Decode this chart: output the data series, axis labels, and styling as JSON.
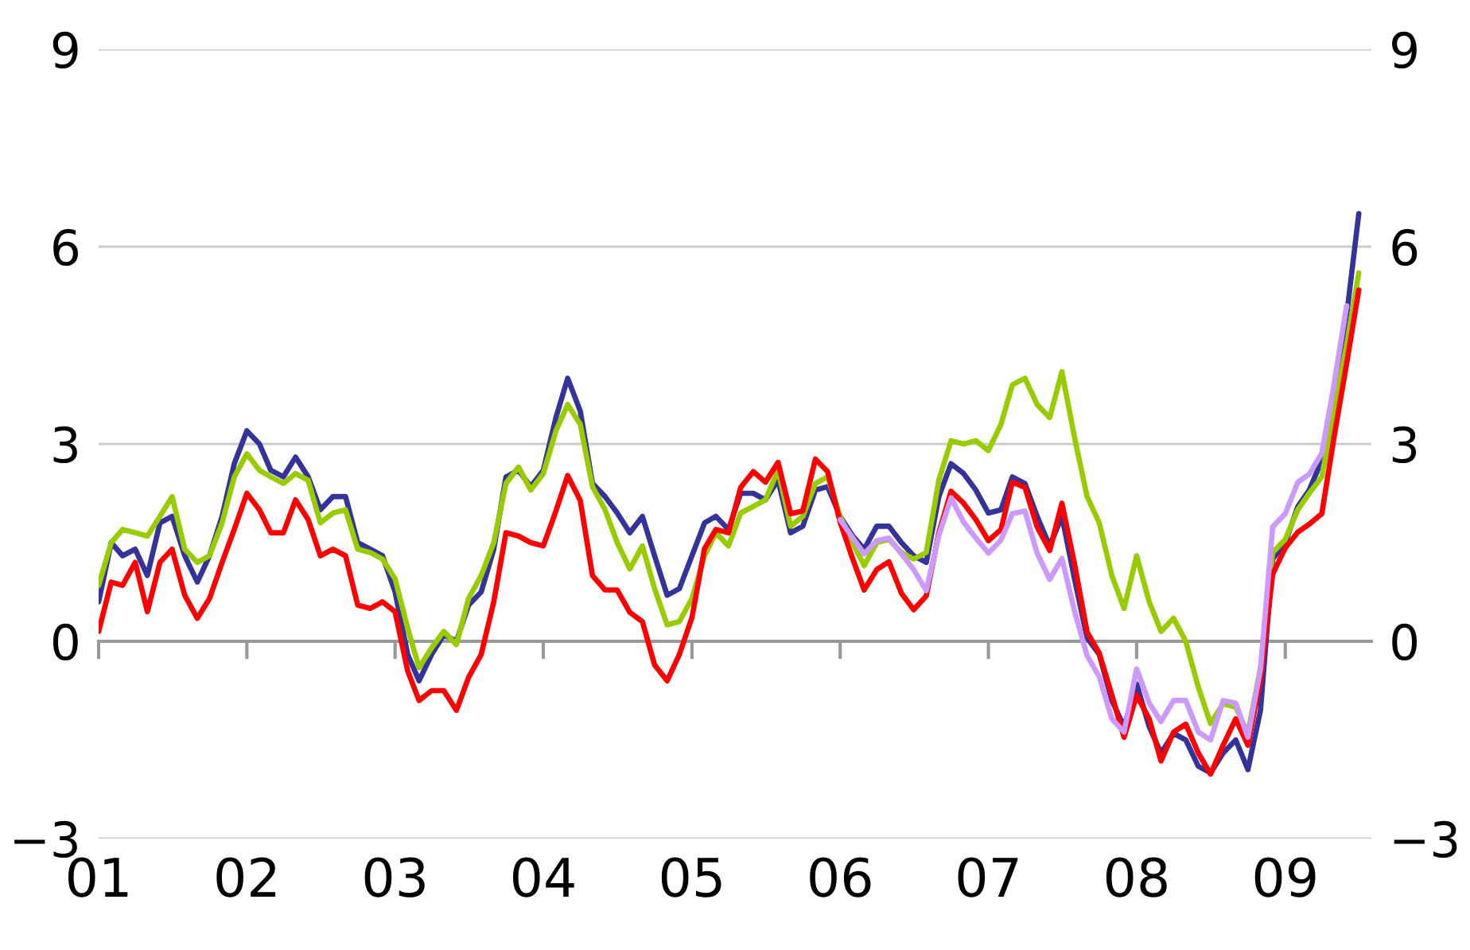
{
  "chart_data": {
    "type": "line",
    "x": [
      "2001-01",
      "2001-02",
      "2001-03",
      "2001-04",
      "2001-05",
      "2001-06",
      "2001-07",
      "2001-08",
      "2001-09",
      "2001-10",
      "2001-11",
      "2001-12",
      "2002-01",
      "2002-02",
      "2002-03",
      "2002-04",
      "2002-05",
      "2002-06",
      "2002-07",
      "2002-08",
      "2002-09",
      "2002-10",
      "2002-11",
      "2002-12",
      "2003-01",
      "2003-02",
      "2003-03",
      "2003-04",
      "2003-05",
      "2003-06",
      "2003-07",
      "2003-08",
      "2003-09",
      "2003-10",
      "2003-11",
      "2003-12",
      "2004-01",
      "2004-02",
      "2004-03",
      "2004-04",
      "2004-05",
      "2004-06",
      "2004-07",
      "2004-08",
      "2004-09",
      "2004-10",
      "2004-11",
      "2004-12",
      "2005-01",
      "2005-02",
      "2005-03",
      "2005-04",
      "2005-05",
      "2005-06",
      "2005-07",
      "2005-08",
      "2005-09",
      "2005-10",
      "2005-11",
      "2005-12",
      "2006-01",
      "2006-02",
      "2006-03",
      "2006-04",
      "2006-05",
      "2006-06",
      "2006-07",
      "2006-08",
      "2006-09",
      "2006-10",
      "2006-11",
      "2006-12",
      "2007-01",
      "2007-02",
      "2007-03",
      "2007-04",
      "2007-05",
      "2007-06",
      "2007-07",
      "2007-08",
      "2007-09",
      "2007-10",
      "2007-11",
      "2007-12",
      "2008-01",
      "2008-02",
      "2008-03",
      "2008-04",
      "2008-05",
      "2008-06",
      "2008-07",
      "2008-08",
      "2008-09",
      "2008-10",
      "2008-11",
      "2008-12",
      "2009-01",
      "2009-02",
      "2009-03",
      "2009-04",
      "2009-05",
      "2009-06",
      "2009-07"
    ],
    "series": [
      {
        "color": "#333399",
        "values": [
          0.6,
          1.5,
          1.3,
          1.4,
          1.0,
          1.8,
          1.9,
          1.3,
          0.9,
          1.3,
          1.9,
          2.7,
          3.2,
          3.0,
          2.6,
          2.5,
          2.8,
          2.5,
          2.0,
          2.2,
          2.2,
          1.5,
          1.4,
          1.3,
          0.75,
          -0.2,
          -0.6,
          -0.2,
          0.1,
          0,
          0.55,
          0.75,
          1.4,
          2.5,
          2.6,
          2.35,
          2.6,
          3.4,
          4.0,
          3.5,
          2.4,
          2.2,
          1.95,
          1.65,
          1.9,
          1.3,
          0.7,
          0.8,
          1.3,
          1.8,
          1.9,
          1.7,
          2.25,
          2.25,
          2.15,
          2.45,
          1.65,
          1.75,
          2.3,
          2.35,
          1.9,
          1.6,
          1.4,
          1.75,
          1.75,
          1.5,
          1.3,
          1.2,
          2.2,
          2.7,
          2.55,
          2.3,
          1.95,
          2.0,
          2.5,
          2.4,
          1.9,
          1.45,
          1.9,
          0.95,
          0.05,
          -0.2,
          -0.9,
          -1.3,
          -0.65,
          -1.3,
          -1.7,
          -1.4,
          -1.5,
          -1.9,
          -2.0,
          -1.7,
          -1.5,
          -1.95,
          -1.05,
          1.25,
          1.5,
          2.05,
          2.3,
          2.75,
          3.75,
          4.95,
          6.5
        ]
      },
      {
        "color": "#99cc00",
        "values": [
          0.85,
          1.5,
          1.7,
          1.65,
          1.6,
          1.9,
          2.2,
          1.4,
          1.2,
          1.3,
          1.8,
          2.5,
          2.85,
          2.6,
          2.5,
          2.4,
          2.55,
          2.45,
          1.8,
          1.95,
          2.0,
          1.4,
          1.35,
          1.25,
          0.95,
          0.2,
          -0.4,
          -0.1,
          0.15,
          -0.05,
          0.65,
          1.0,
          1.5,
          2.4,
          2.65,
          2.3,
          2.55,
          3.2,
          3.6,
          3.3,
          2.35,
          2.0,
          1.5,
          1.1,
          1.45,
          0.8,
          0.25,
          0.3,
          0.65,
          1.3,
          1.65,
          1.45,
          1.95,
          2.05,
          2.15,
          2.6,
          1.75,
          1.9,
          2.4,
          2.5,
          1.9,
          1.5,
          1.15,
          1.5,
          1.55,
          1.35,
          1.25,
          1.35,
          2.45,
          3.05,
          3.0,
          3.05,
          2.9,
          3.3,
          3.9,
          4.0,
          3.6,
          3.4,
          4.1,
          3.1,
          2.2,
          1.8,
          1.0,
          0.5,
          1.3,
          0.6,
          0.15,
          0.35,
          0,
          -0.7,
          -1.25,
          -0.95,
          -1.0,
          -1.4,
          -0.4,
          1.35,
          1.55,
          2.0,
          2.25,
          2.5,
          3.5,
          4.5,
          5.6
        ]
      },
      {
        "color": "#ff0000",
        "values": [
          0.15,
          0.9,
          0.85,
          1.2,
          0.45,
          1.2,
          1.4,
          0.7,
          0.35,
          0.65,
          1.2,
          1.7,
          2.25,
          2.0,
          1.65,
          1.65,
          2.15,
          1.85,
          1.3,
          1.4,
          1.3,
          0.55,
          0.5,
          0.6,
          0.45,
          -0.45,
          -0.9,
          -0.75,
          -0.75,
          -1.05,
          -0.55,
          -0.2,
          0.6,
          1.65,
          1.6,
          1.5,
          1.45,
          1.98,
          2.52,
          2.14,
          1.0,
          0.78,
          0.78,
          0.44,
          0.3,
          -0.36,
          -0.6,
          -0.2,
          0.36,
          1.41,
          1.7,
          1.65,
          2.34,
          2.58,
          2.42,
          2.72,
          1.94,
          1.98,
          2.77,
          2.58,
          1.81,
          1.25,
          0.78,
          1.09,
          1.21,
          0.73,
          0.48,
          0.69,
          1.65,
          2.28,
          2.1,
          1.85,
          1.53,
          1.7,
          2.42,
          2.34,
          1.74,
          1.38,
          2.1,
          1.18,
          0.14,
          -0.18,
          -0.82,
          -1.46,
          -0.82,
          -1.18,
          -1.82,
          -1.38,
          -1.26,
          -1.7,
          -2.02,
          -1.58,
          -1.18,
          -1.58,
          -0.58,
          1.02,
          1.42,
          1.66,
          1.78,
          1.94,
          3.1,
          4.22,
          5.34
        ]
      },
      {
        "color": "#cc99ff",
        "values": [
          null,
          null,
          null,
          null,
          null,
          null,
          null,
          null,
          null,
          null,
          null,
          null,
          null,
          null,
          null,
          null,
          null,
          null,
          null,
          null,
          null,
          null,
          null,
          null,
          null,
          null,
          null,
          null,
          null,
          null,
          null,
          null,
          null,
          null,
          null,
          null,
          null,
          null,
          null,
          null,
          null,
          null,
          null,
          null,
          null,
          null,
          null,
          null,
          null,
          null,
          null,
          null,
          null,
          null,
          null,
          null,
          null,
          null,
          null,
          null,
          1.85,
          1.57,
          1.33,
          1.53,
          1.57,
          1.33,
          1.09,
          0.77,
          1.61,
          2.18,
          1.81,
          1.57,
          1.34,
          1.54,
          1.94,
          1.98,
          1.34,
          0.94,
          1.26,
          0.46,
          -0.22,
          -0.54,
          -1.18,
          -1.38,
          -0.42,
          -0.94,
          -1.22,
          -0.9,
          -0.9,
          -1.38,
          -1.5,
          -0.9,
          -0.94,
          -1.46,
          -0.42,
          1.74,
          1.94,
          2.42,
          2.54,
          2.86,
          3.9,
          5.1,
          null
        ]
      }
    ],
    "xlim": [
      "2001-01",
      "2009-08"
    ],
    "xticks": [
      {
        "value": "2001-01",
        "label": "01"
      },
      {
        "value": "2002-01",
        "label": "02"
      },
      {
        "value": "2003-01",
        "label": "03"
      },
      {
        "value": "2004-01",
        "label": "04"
      },
      {
        "value": "2005-01",
        "label": "05"
      },
      {
        "value": "2006-01",
        "label": "06"
      },
      {
        "value": "2007-01",
        "label": "07"
      },
      {
        "value": "2008-01",
        "label": "08"
      },
      {
        "value": "2009-01",
        "label": "09"
      }
    ],
    "ylim": [
      -3,
      9
    ],
    "yticks": [
      {
        "value": -3,
        "label": "−3"
      },
      0,
      3,
      6,
      9
    ],
    "y2lim": [
      -3,
      9
    ],
    "y2ticks": [
      {
        "value": -3,
        "label": "−3"
      },
      0,
      3,
      6,
      9
    ],
    "grid": "y",
    "legend": false,
    "marker": "none",
    "line_style": "solid"
  }
}
